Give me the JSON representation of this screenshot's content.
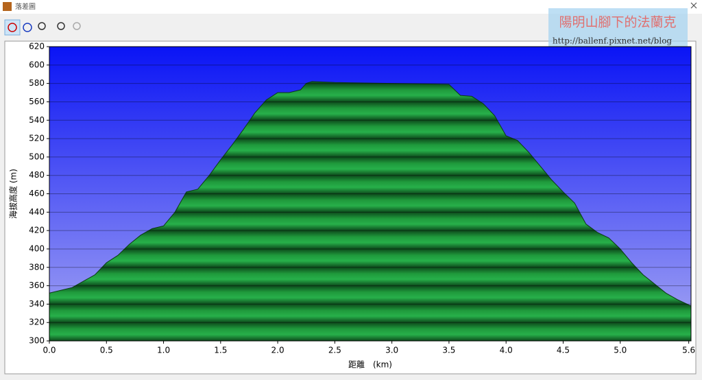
{
  "window_title": "落差圖",
  "watermark": {
    "title": "陽明山腳下的法蘭克",
    "url": "http://ballenf.pixnet.net/blog"
  },
  "chart_data": {
    "type": "area",
    "xlabel": "距離　(km)",
    "ylabel": "海拔高度 (m)",
    "x": [
      0,
      0.2,
      0.4,
      0.5,
      0.6,
      0.7,
      0.8,
      0.9,
      1.0,
      1.1,
      1.2,
      1.3,
      1.4,
      1.5,
      1.6,
      1.7,
      1.8,
      1.9,
      2.0,
      2.1,
      2.2,
      2.25,
      2.3,
      2.5,
      3.0,
      3.5,
      3.6,
      3.7,
      3.8,
      3.9,
      4.0,
      4.1,
      4.2,
      4.3,
      4.4,
      4.5,
      4.6,
      4.7,
      4.8,
      4.9,
      5.0,
      5.1,
      5.2,
      5.3,
      5.4,
      5.5,
      5.62
    ],
    "values": [
      352,
      358,
      372,
      385,
      393,
      405,
      415,
      422,
      425,
      440,
      462,
      465,
      480,
      497,
      513,
      530,
      548,
      562,
      570,
      570,
      573,
      580,
      582,
      581,
      580,
      579,
      567,
      566,
      558,
      545,
      523,
      518,
      505,
      490,
      475,
      462,
      450,
      427,
      418,
      412,
      400,
      385,
      372,
      362,
      352,
      345,
      338
    ],
    "color": "#1f9a3c",
    "xlim": [
      0,
      5.62
    ],
    "xticks": [
      {
        "value": 0,
        "label": "0.0"
      },
      0.5,
      {
        "value": 1,
        "label": "1.0"
      },
      1.5,
      {
        "value": 2,
        "label": "2.0"
      },
      2.5,
      {
        "value": 3,
        "label": "3.0"
      },
      3.5,
      {
        "value": 4,
        "label": "4.0"
      },
      4.5,
      {
        "value": 5,
        "label": "5.0"
      },
      5.6
    ],
    "ylim": [
      300,
      620
    ],
    "yticks": [
      300,
      320,
      340,
      360,
      380,
      400,
      420,
      440,
      460,
      480,
      500,
      520,
      540,
      560,
      580,
      600,
      620
    ],
    "grid": true
  }
}
